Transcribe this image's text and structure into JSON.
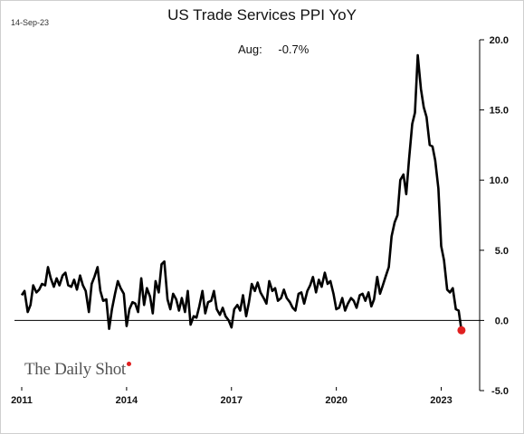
{
  "header": {
    "date": "14-Sep-23",
    "title": "US Trade Services PPI YoY"
  },
  "annotation": {
    "label": "Aug:",
    "value": "-0.7%"
  },
  "logo": {
    "text": "The Daily Shot"
  },
  "chart_data": {
    "type": "line",
    "title": "US Trade Services PPI YoY",
    "xlabel": "",
    "ylabel": "",
    "x_ticks": [
      "2011",
      "2014",
      "2017",
      "2020",
      "2023"
    ],
    "y_ticks": [
      "20.0",
      "15.0",
      "10.0",
      "5.0",
      "0.0",
      "-5.0"
    ],
    "xlim": [
      2011.0,
      2024.1
    ],
    "ylim": [
      -5,
      20
    ],
    "y_axis_side": "right",
    "zero_line": true,
    "grid": false,
    "line_color": "#000000",
    "marker_color": "#e02020",
    "series": [
      {
        "x": [
          2011.0,
          2011.08,
          2011.17,
          2011.25,
          2011.33,
          2011.42,
          2011.5,
          2011.58,
          2011.67,
          2011.75,
          2011.83,
          2011.92,
          2012.0,
          2012.08,
          2012.17,
          2012.25,
          2012.33,
          2012.42,
          2012.5,
          2012.58,
          2012.67,
          2012.75,
          2012.83,
          2012.92,
          2013.0,
          2013.08,
          2013.17,
          2013.25,
          2013.33,
          2013.42,
          2013.5,
          2013.58,
          2013.67,
          2013.75,
          2013.83,
          2013.92,
          2014.0,
          2014.08,
          2014.17,
          2014.25,
          2014.33,
          2014.42,
          2014.5,
          2014.58,
          2014.67,
          2014.75,
          2014.83,
          2014.92,
          2015.0,
          2015.08,
          2015.17,
          2015.25,
          2015.33,
          2015.42,
          2015.5,
          2015.58,
          2015.67,
          2015.75,
          2015.83,
          2015.92,
          2016.0,
          2016.08,
          2016.17,
          2016.25,
          2016.33,
          2016.42,
          2016.5,
          2016.58,
          2016.67,
          2016.75,
          2016.83,
          2016.92,
          2017.0,
          2017.08,
          2017.17,
          2017.25,
          2017.33,
          2017.42,
          2017.5,
          2017.58,
          2017.67,
          2017.75,
          2017.83,
          2017.92,
          2018.0,
          2018.08,
          2018.17,
          2018.25,
          2018.33,
          2018.42,
          2018.5,
          2018.58,
          2018.67,
          2018.75,
          2018.83,
          2018.92,
          2019.0,
          2019.08,
          2019.17,
          2019.25,
          2019.33,
          2019.42,
          2019.5,
          2019.58,
          2019.67,
          2019.75,
          2019.83,
          2019.92,
          2020.0,
          2020.08,
          2020.17,
          2020.25,
          2020.33,
          2020.42,
          2020.5,
          2020.58,
          2020.67,
          2020.75,
          2020.83,
          2020.92,
          2021.0,
          2021.08,
          2021.17,
          2021.25,
          2021.33,
          2021.42,
          2021.5,
          2021.58,
          2021.67,
          2021.75,
          2021.83,
          2021.92,
          2022.0,
          2022.08,
          2022.17,
          2022.25,
          2022.33,
          2022.42,
          2022.5,
          2022.58,
          2022.67,
          2022.75,
          2022.83,
          2022.92,
          2023.0,
          2023.08,
          2023.17,
          2023.25,
          2023.33,
          2023.42,
          2023.5,
          2023.58
        ],
        "y": [
          1.8,
          2.1,
          0.6,
          1.1,
          2.5,
          2.0,
          2.2,
          2.6,
          2.5,
          3.8,
          3.0,
          2.4,
          3.0,
          2.5,
          3.2,
          3.4,
          2.5,
          2.4,
          2.9,
          2.2,
          3.2,
          2.5,
          2.1,
          0.6,
          2.6,
          3.1,
          3.8,
          2.1,
          1.4,
          1.5,
          -0.6,
          0.8,
          1.9,
          2.8,
          2.3,
          1.9,
          -0.4,
          0.8,
          1.3,
          1.2,
          0.6,
          3.0,
          1.1,
          2.3,
          1.7,
          0.5,
          2.8,
          2.0,
          4.0,
          4.2,
          1.5,
          0.8,
          1.9,
          1.5,
          0.7,
          1.6,
          0.6,
          2.1,
          -0.3,
          0.3,
          0.2,
          1.0,
          2.1,
          0.5,
          1.3,
          1.4,
          2.1,
          0.8,
          0.4,
          0.9,
          0.3,
          0.0,
          -0.5,
          0.8,
          1.1,
          0.7,
          1.8,
          0.3,
          1.3,
          2.6,
          2.1,
          2.7,
          2.0,
          1.6,
          1.2,
          2.8,
          2.1,
          2.3,
          1.4,
          1.6,
          2.2,
          1.6,
          1.3,
          0.9,
          0.7,
          1.9,
          2.0,
          1.2,
          2.1,
          2.5,
          3.1,
          2.0,
          2.9,
          2.4,
          3.4,
          2.6,
          2.8,
          1.9,
          0.8,
          0.9,
          1.6,
          0.7,
          1.2,
          1.6,
          1.4,
          0.9,
          1.8,
          1.9,
          1.4,
          2.0,
          1.0,
          1.5,
          3.1,
          1.9,
          2.5,
          3.2,
          3.8,
          6.0,
          7.0,
          7.5,
          10.0,
          10.4,
          9.0,
          11.5,
          14.0,
          14.8,
          18.9,
          16.5,
          15.2,
          14.5,
          12.5,
          12.4,
          11.4,
          9.4,
          5.3,
          4.3,
          2.2,
          2.0,
          2.3,
          0.8,
          0.7,
          -0.7
        ]
      }
    ],
    "last_point": {
      "x": 2023.58,
      "y": -0.7
    }
  }
}
